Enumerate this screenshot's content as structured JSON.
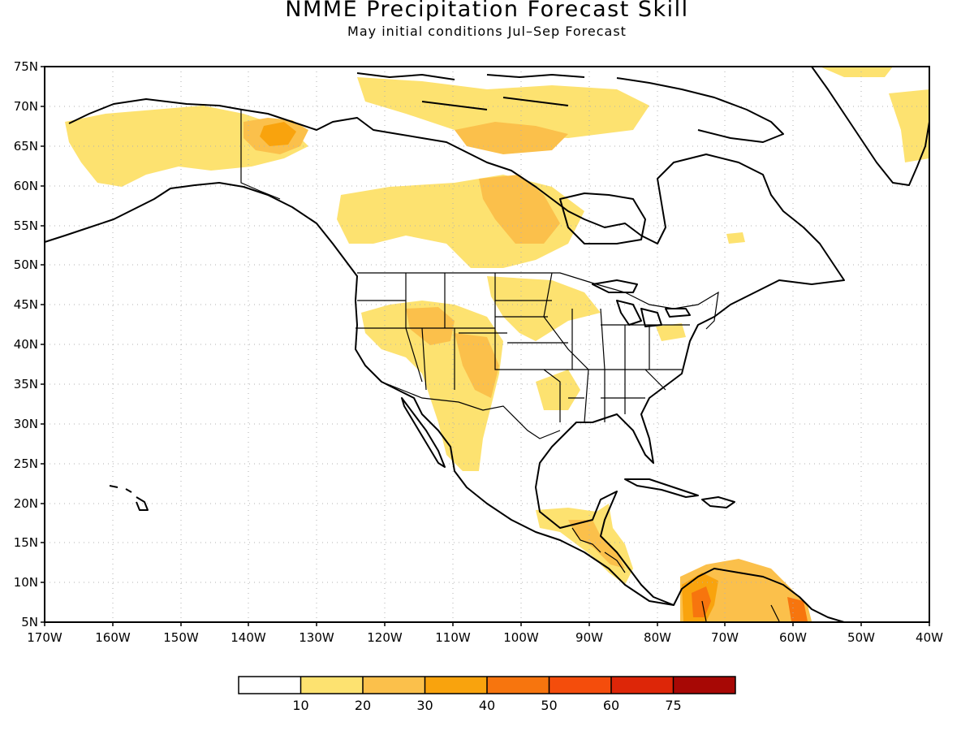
{
  "title": "NMME Precipitation Forecast Skill",
  "subtitle": "May initial conditions   Jul–Sep Forecast",
  "map": {
    "lon_range": [
      -170,
      -40
    ],
    "lat_range": [
      5,
      75
    ],
    "lat_labels": [
      "75N",
      "70N",
      "65N",
      "60N",
      "55N",
      "50N",
      "45N",
      "40N",
      "35N",
      "30N",
      "25N",
      "20N",
      "15N",
      "10N",
      "5N"
    ],
    "lon_labels": [
      "170W",
      "160W",
      "150W",
      "140W",
      "130W",
      "120W",
      "110W",
      "100W",
      "90W",
      "80W",
      "70W",
      "60W",
      "50W",
      "40W"
    ]
  },
  "colorbar": {
    "colors": [
      "#ffffff",
      "#fde270",
      "#fbc04b",
      "#f9a30d",
      "#f7750e",
      "#f44d0c",
      "#dd2608",
      "#a70805"
    ],
    "labels": [
      "10",
      "20",
      "30",
      "40",
      "50",
      "60",
      "75"
    ]
  }
}
